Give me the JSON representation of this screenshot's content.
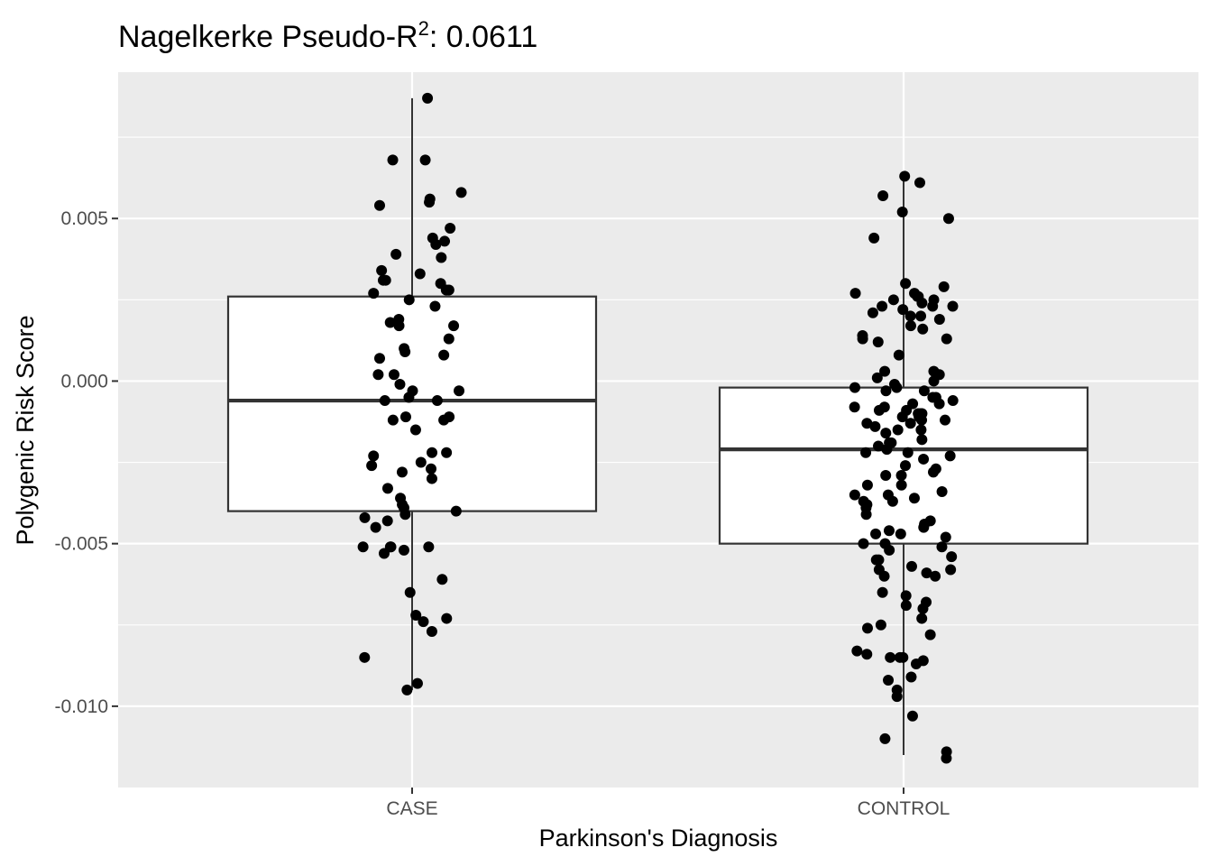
{
  "chart_data": {
    "type": "box",
    "title": {
      "prefix": "Nagelkerke Pseudo-R",
      "superscript": "2",
      "suffix": ": 0.0611"
    },
    "xlabel": "Parkinson's Diagnosis",
    "ylabel": "Polygenic Risk Score",
    "categories": [
      "CASE",
      "CONTROL"
    ],
    "y_ticks": [
      0.005,
      0.0,
      -0.005,
      -0.01
    ],
    "y_tick_labels": [
      "0.005",
      "0.000",
      "-0.005",
      "-0.010"
    ],
    "ylim": [
      -0.0125,
      0.0095
    ],
    "grid": true,
    "colors": {
      "panel": "#ebebeb",
      "grid": "#ffffff",
      "box_fill": "#ffffff",
      "box_line": "#333333",
      "point": "#000000"
    },
    "boxes": [
      {
        "category": "CASE",
        "whisker_low": -0.0095,
        "q1": -0.004,
        "median": -0.0006,
        "q3": 0.0026,
        "whisker_high": 0.0087
      },
      {
        "category": "CONTROL",
        "whisker_low": -0.0115,
        "q1": -0.005,
        "median": -0.0021,
        "q3": -0.0002,
        "whisker_high": 0.0063
      }
    ],
    "points": {
      "CASE": [
        0.0087,
        0.0068,
        0.0068,
        0.0058,
        0.0056,
        0.0055,
        0.0054,
        0.0047,
        0.0044,
        0.0043,
        0.0042,
        0.0039,
        0.0038,
        0.0034,
        0.0033,
        0.0031,
        0.0031,
        0.003,
        0.0028,
        0.0028,
        0.0027,
        0.0025,
        0.0023,
        0.0019,
        0.0018,
        0.0017,
        0.0017,
        0.0013,
        0.001,
        0.0009,
        0.0008,
        0.0007,
        0.0002,
        0.0002,
        -0.0001,
        -0.0003,
        -0.0003,
        -0.0005,
        -0.0006,
        -0.0006,
        -0.0011,
        -0.0011,
        -0.0012,
        -0.0012,
        -0.0015,
        -0.0022,
        -0.0022,
        -0.0023,
        -0.0025,
        -0.0026,
        -0.0027,
        -0.0028,
        -0.003,
        -0.0033,
        -0.0036,
        -0.0038,
        -0.0039,
        -0.004,
        -0.0041,
        -0.0042,
        -0.0043,
        -0.0045,
        -0.0051,
        -0.0051,
        -0.0051,
        -0.0051,
        -0.0052,
        -0.0053,
        -0.0061,
        -0.0065,
        -0.0072,
        -0.0073,
        -0.0074,
        -0.0077,
        -0.0085,
        -0.0093,
        -0.0095
      ],
      "CONTROL": [
        0.0063,
        0.0061,
        0.0057,
        0.0052,
        0.005,
        0.0044,
        0.003,
        0.0029,
        0.0027,
        0.0027,
        0.0026,
        0.0026,
        0.0025,
        0.0025,
        0.0024,
        0.0023,
        0.0023,
        0.0023,
        0.0022,
        0.0021,
        0.002,
        0.002,
        0.0019,
        0.0017,
        0.0016,
        0.0014,
        0.0013,
        0.0013,
        0.0012,
        0.0008,
        0.0003,
        0.0003,
        0.0002,
        0.0001,
        0.0,
        -0.0001,
        -0.0002,
        -0.0002,
        -0.0003,
        -0.0003,
        -0.0005,
        -0.0005,
        -0.0006,
        -0.0007,
        -0.0007,
        -0.0008,
        -0.0008,
        -0.0009,
        -0.0009,
        -0.001,
        -0.001,
        -0.001,
        -0.0011,
        -0.0011,
        -0.0012,
        -0.0012,
        -0.0013,
        -0.0013,
        -0.0014,
        -0.0015,
        -0.0015,
        -0.0016,
        -0.0018,
        -0.0019,
        -0.0019,
        -0.002,
        -0.0021,
        -0.0022,
        -0.0022,
        -0.0023,
        -0.0024,
        -0.0026,
        -0.0027,
        -0.0028,
        -0.0029,
        -0.0029,
        -0.0032,
        -0.0032,
        -0.0034,
        -0.0035,
        -0.0035,
        -0.0036,
        -0.0037,
        -0.0037,
        -0.0038,
        -0.0039,
        -0.0041,
        -0.0043,
        -0.0044,
        -0.0045,
        -0.0046,
        -0.0047,
        -0.0047,
        -0.0048,
        -0.005,
        -0.005,
        -0.0051,
        -0.0052,
        -0.0054,
        -0.0055,
        -0.0055,
        -0.0057,
        -0.0058,
        -0.0058,
        -0.0059,
        -0.006,
        -0.006,
        -0.0065,
        -0.0066,
        -0.0068,
        -0.0069,
        -0.007,
        -0.0073,
        -0.0075,
        -0.0076,
        -0.0078,
        -0.0083,
        -0.0084,
        -0.0085,
        -0.0085,
        -0.0085,
        -0.0086,
        -0.0087,
        -0.0091,
        -0.0092,
        -0.0095,
        -0.0097,
        -0.0103,
        -0.011,
        -0.0114,
        -0.0116
      ]
    }
  }
}
